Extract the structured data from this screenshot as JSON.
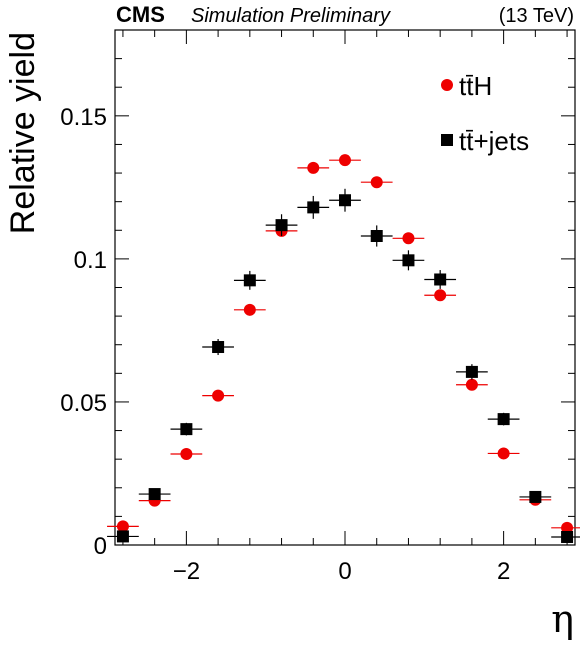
{
  "header": {
    "experiment": "CMS",
    "status": "Simulation Preliminary",
    "energy": "(13 TeV)"
  },
  "chart_data": {
    "type": "scatter",
    "xlabel": "η",
    "ylabel": "Relative yield",
    "xlim": [
      -2.9,
      2.9
    ],
    "ylim": [
      0,
      0.18
    ],
    "x_ticks": [
      -2,
      0,
      2
    ],
    "x_tick_labels": [
      "−2",
      "0",
      "2"
    ],
    "y_ticks": [
      0,
      0.05,
      0.1,
      0.15
    ],
    "y_tick_labels": [
      "0",
      "0.05",
      "0.1",
      "0.15"
    ],
    "legend_position": "top-right",
    "series": [
      {
        "name": "tt̄H",
        "color": "#ee0000",
        "marker": "circle",
        "x": [
          -2.8,
          -2.4,
          -2.0,
          -1.6,
          -1.2,
          -0.8,
          -0.4,
          0.0,
          0.4,
          0.8,
          1.2,
          1.6,
          2.0,
          2.4,
          2.8
        ],
        "y": [
          0.0065,
          0.0155,
          0.0318,
          0.0522,
          0.0822,
          0.1098,
          0.1318,
          0.1345,
          0.1268,
          0.1072,
          0.0873,
          0.056,
          0.032,
          0.0158,
          0.006
        ],
        "xerr": 0.2,
        "yerr": [
          0.0007,
          0.0009,
          0.001,
          0.0011,
          0.0013,
          0.0016,
          0.0018,
          0.0018,
          0.0017,
          0.0016,
          0.0013,
          0.0011,
          0.001,
          0.0009,
          0.0007
        ]
      },
      {
        "name": "tt̄+jets",
        "color": "#000000",
        "marker": "square",
        "x": [
          -2.8,
          -2.4,
          -2.0,
          -1.6,
          -1.2,
          -0.8,
          -0.4,
          0.0,
          0.4,
          0.8,
          1.2,
          1.6,
          2.0,
          2.4,
          2.8
        ],
        "y": [
          0.003,
          0.0178,
          0.0405,
          0.0692,
          0.0925,
          0.1118,
          0.118,
          0.1205,
          0.108,
          0.0995,
          0.0928,
          0.0605,
          0.044,
          0.0168,
          0.0028
        ],
        "xerr": 0.2,
        "yerr": [
          0.0008,
          0.0015,
          0.0022,
          0.0028,
          0.0033,
          0.0038,
          0.004,
          0.004,
          0.0037,
          0.0035,
          0.0033,
          0.0027,
          0.0022,
          0.0014,
          0.0008
        ]
      }
    ]
  }
}
